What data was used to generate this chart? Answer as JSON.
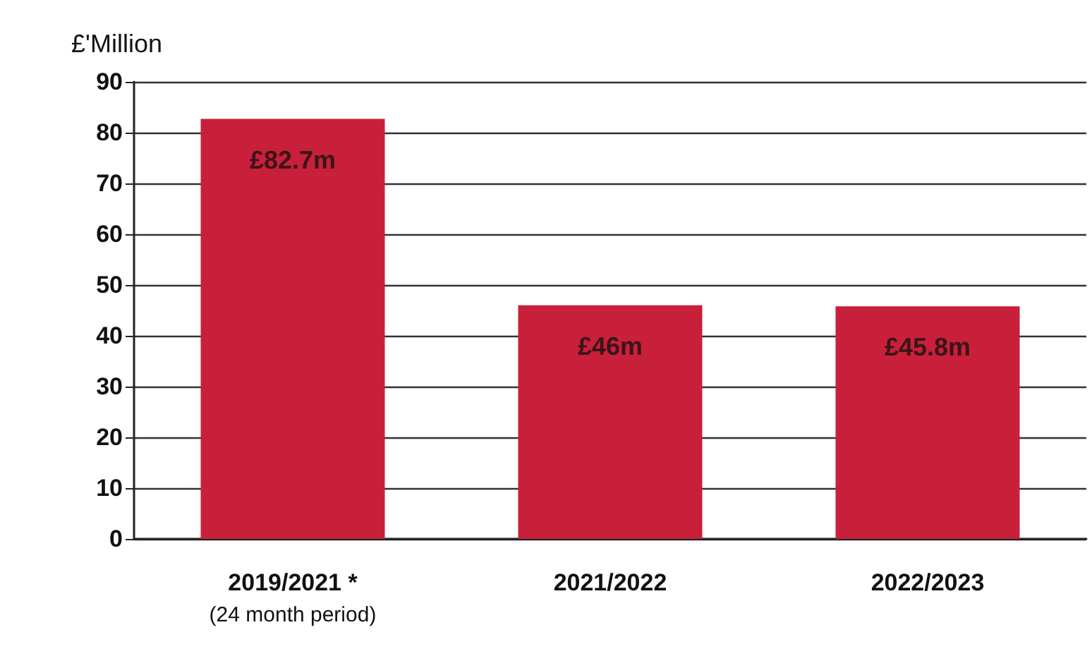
{
  "chart_data": {
    "type": "bar",
    "ylabel": "£'Million",
    "categories": [
      "2019/2021 *\n(24 month period)",
      "2021/2022",
      "2022/2023"
    ],
    "values": [
      82.7,
      46,
      45.8
    ],
    "value_labels": [
      "£82.7m",
      "£46m",
      "£45.8m"
    ],
    "color": "#c8203a",
    "ylim": [
      0,
      90
    ],
    "yticks": [
      0,
      10,
      20,
      30,
      40,
      50,
      60,
      70,
      80,
      90
    ],
    "grid": "y"
  }
}
